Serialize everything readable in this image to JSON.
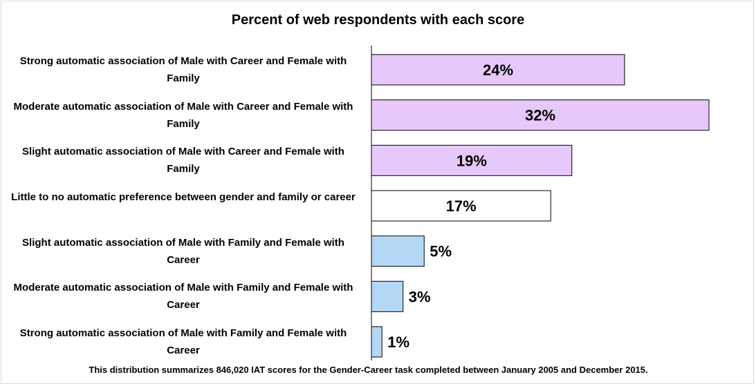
{
  "chart_data": {
    "type": "bar",
    "orientation": "horizontal",
    "title": "Percent of web respondents with each score",
    "categories": [
      "Strong automatic association of Male with Career and Female with Family",
      "Moderate automatic association of Male with Career and Female with Family",
      "Slight automatic association of Male with Career and Female with Family",
      "Little to no automatic preference between gender and family or career",
      "Slight automatic association of Male with Family and Female with Career",
      "Moderate automatic association of Male with Family and Female with Career",
      "Strong automatic association of Male with Family and Female with Career"
    ],
    "values": [
      24,
      32,
      19,
      17,
      5,
      3,
      1
    ],
    "value_labels": [
      "24%",
      "32%",
      "19%",
      "17%",
      "5%",
      "3%",
      "1%"
    ],
    "bar_colors": [
      "#e6c8fa",
      "#e6c8fa",
      "#e6c8fa",
      "#ffffff",
      "#b4d7f5",
      "#b4d7f5",
      "#b4d7f5"
    ],
    "xlim": [
      0,
      32
    ],
    "grid": false,
    "legend": "none",
    "footnote": "This distribution summarizes 846,020 IAT scores for the Gender-Career task completed between January 2005 and December 2015."
  }
}
